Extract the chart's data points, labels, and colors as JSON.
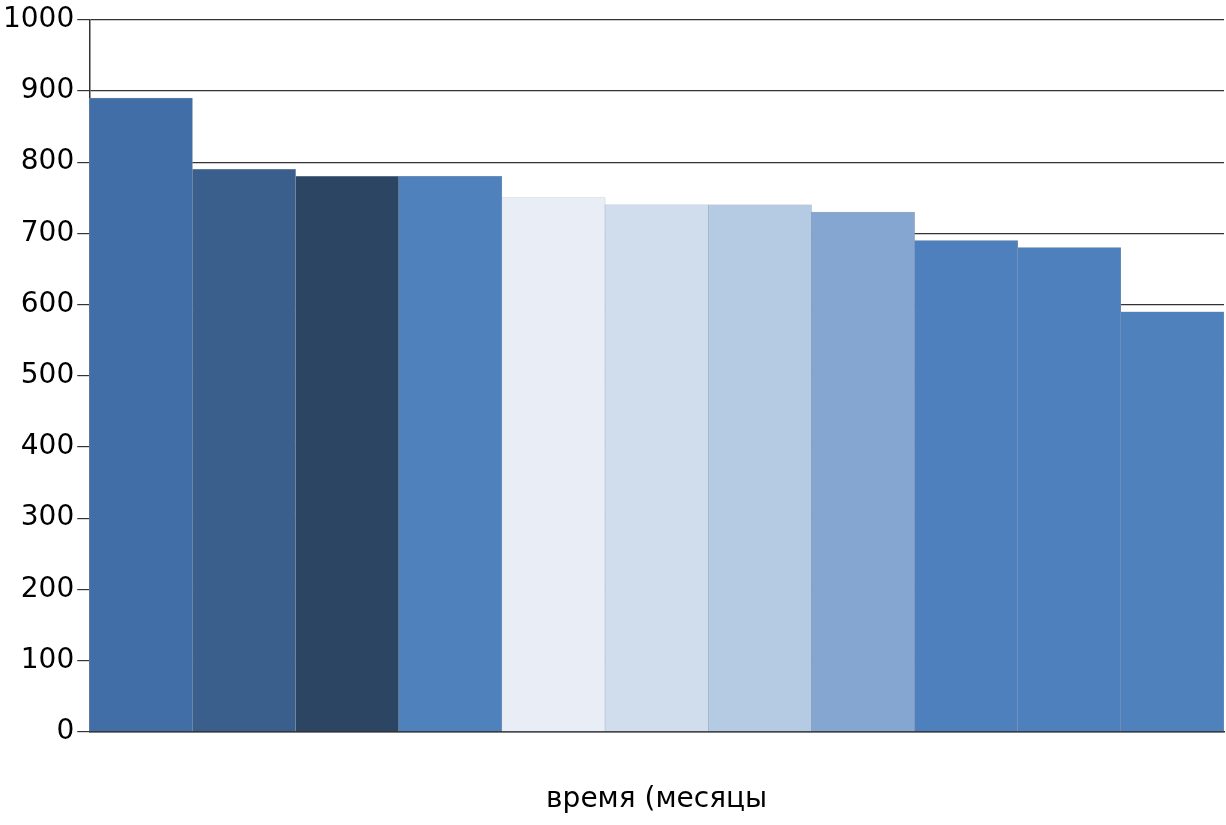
{
  "chart_data": {
    "type": "bar",
    "xlabel": "время (месяцы",
    "categories": [
      null,
      null,
      null,
      null,
      null,
      null,
      null,
      null,
      null,
      null,
      null
    ],
    "values": [
      890,
      790,
      780,
      780,
      750,
      740,
      740,
      730,
      690,
      680,
      590
    ],
    "colors": [
      "#416ea6",
      "#3a5f8d",
      "#2b4563",
      "#4f81bd",
      "#e9eef6",
      "#d0dded",
      "#b5cbe4",
      "#84a6d0",
      "#4e80bd",
      "#4e80bd",
      "#4f81bd"
    ],
    "ylim": [
      0,
      1000
    ],
    "yticks": [
      0,
      100,
      200,
      300,
      400,
      500,
      600,
      700,
      800,
      900,
      1000
    ],
    "grid": "y",
    "legend": false
  }
}
